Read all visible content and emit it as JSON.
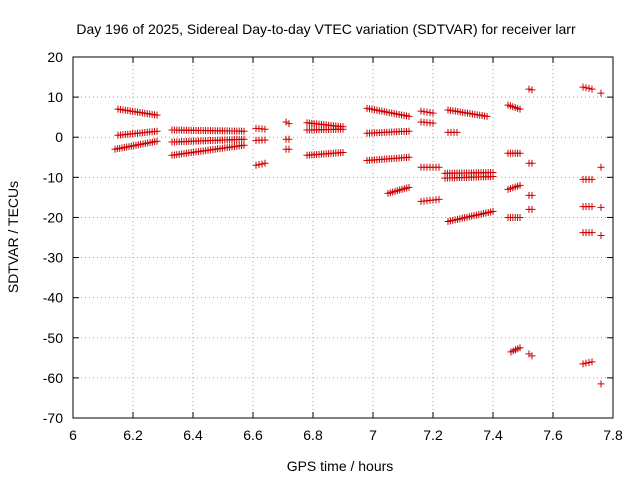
{
  "chart_data": {
    "type": "scatter",
    "title": "Day 196 of 2025, Sidereal Day-to-day VTEC variation (SDTVAR) for receiver larr",
    "xlabel": "GPS time / hours",
    "ylabel": "SDTVAR / TECUs",
    "xlim": [
      6,
      7.8
    ],
    "ylim": [
      -70,
      20
    ],
    "xticks": [
      6,
      6.2,
      6.4,
      6.6,
      6.8,
      7,
      7.2,
      7.4,
      7.6,
      7.8
    ],
    "yticks": [
      20,
      10,
      0,
      -10,
      -20,
      -30,
      -40,
      -50,
      -60,
      -70
    ],
    "xtick_labels": [
      "6",
      "6.2",
      "6.4",
      "6.6",
      "6.8",
      "7",
      "7.2",
      "7.4",
      "7.6",
      "7.8"
    ],
    "ytick_labels": [
      "20",
      "10",
      "0",
      "-10",
      "-20",
      "-30",
      "-40",
      "-50",
      "-60",
      "-70"
    ],
    "grid": true,
    "marker": "+",
    "color": "#cc0000",
    "segments": [
      {
        "x0": 6.15,
        "x1": 6.28,
        "y0": 7.0,
        "y1": 5.5,
        "step": 0.008
      },
      {
        "x0": 6.15,
        "x1": 6.28,
        "y0": 0.5,
        "y1": 1.5,
        "step": 0.008
      },
      {
        "x0": 6.14,
        "x1": 6.28,
        "y0": -3.0,
        "y1": -1.0,
        "step": 0.008
      },
      {
        "x0": 6.33,
        "x1": 6.57,
        "y0": 1.8,
        "y1": 1.5,
        "step": 0.008
      },
      {
        "x0": 6.33,
        "x1": 6.57,
        "y0": -1.2,
        "y1": -0.5,
        "step": 0.008
      },
      {
        "x0": 6.33,
        "x1": 6.57,
        "y0": -4.5,
        "y1": -2.0,
        "step": 0.008
      },
      {
        "x0": 6.61,
        "x1": 6.64,
        "y0": 2.2,
        "y1": 2.0,
        "step": 0.01
      },
      {
        "x0": 6.61,
        "x1": 6.64,
        "y0": -0.8,
        "y1": -0.7,
        "step": 0.01
      },
      {
        "x0": 6.61,
        "x1": 6.64,
        "y0": -7.0,
        "y1": -6.5,
        "step": 0.01
      },
      {
        "x0": 6.71,
        "x1": 6.72,
        "y0": 3.8,
        "y1": 3.4,
        "step": 0.01
      },
      {
        "x0": 6.71,
        "x1": 6.72,
        "y0": -0.5,
        "y1": -0.5,
        "step": 0.01
      },
      {
        "x0": 6.71,
        "x1": 6.72,
        "y0": -3.0,
        "y1": -3.0,
        "step": 0.01
      },
      {
        "x0": 6.78,
        "x1": 6.9,
        "y0": 3.6,
        "y1": 2.6,
        "step": 0.008
      },
      {
        "x0": 6.78,
        "x1": 6.9,
        "y0": 1.8,
        "y1": 2.0,
        "step": 0.008
      },
      {
        "x0": 6.78,
        "x1": 6.9,
        "y0": -4.5,
        "y1": -3.8,
        "step": 0.008
      },
      {
        "x0": 6.98,
        "x1": 7.12,
        "y0": 7.2,
        "y1": 5.2,
        "step": 0.008
      },
      {
        "x0": 6.98,
        "x1": 7.12,
        "y0": 1.0,
        "y1": 1.5,
        "step": 0.008
      },
      {
        "x0": 6.98,
        "x1": 7.12,
        "y0": -5.8,
        "y1": -5.0,
        "step": 0.008
      },
      {
        "x0": 7.05,
        "x1": 7.12,
        "y0": -14.0,
        "y1": -12.5,
        "step": 0.008
      },
      {
        "x0": 7.16,
        "x1": 7.2,
        "y0": 6.5,
        "y1": 6.0,
        "step": 0.01
      },
      {
        "x0": 7.16,
        "x1": 7.2,
        "y0": 3.8,
        "y1": 3.5,
        "step": 0.01
      },
      {
        "x0": 7.16,
        "x1": 7.22,
        "y0": -7.5,
        "y1": -7.5,
        "step": 0.01
      },
      {
        "x0": 7.16,
        "x1": 7.22,
        "y0": -16.0,
        "y1": -15.5,
        "step": 0.01
      },
      {
        "x0": 7.25,
        "x1": 7.38,
        "y0": 6.8,
        "y1": 5.2,
        "step": 0.008
      },
      {
        "x0": 7.25,
        "x1": 7.28,
        "y0": 1.2,
        "y1": 1.2,
        "step": 0.01
      },
      {
        "x0": 7.24,
        "x1": 7.4,
        "y0": -9.0,
        "y1": -8.8,
        "step": 0.008
      },
      {
        "x0": 7.24,
        "x1": 7.4,
        "y0": -10.2,
        "y1": -9.8,
        "step": 0.008
      },
      {
        "x0": 7.25,
        "x1": 7.4,
        "y0": -21.0,
        "y1": -18.5,
        "step": 0.008
      },
      {
        "x0": 7.45,
        "x1": 7.49,
        "y0": 8.0,
        "y1": 7.0,
        "step": 0.008
      },
      {
        "x0": 7.45,
        "x1": 7.49,
        "y0": -4.0,
        "y1": -4.0,
        "step": 0.008
      },
      {
        "x0": 7.45,
        "x1": 7.49,
        "y0": -13.0,
        "y1": -12.0,
        "step": 0.008
      },
      {
        "x0": 7.45,
        "x1": 7.49,
        "y0": -20.0,
        "y1": -20.0,
        "step": 0.008
      },
      {
        "x0": 7.46,
        "x1": 7.49,
        "y0": -53.5,
        "y1": -52.5,
        "step": 0.008
      },
      {
        "x0": 7.52,
        "x1": 7.53,
        "y0": 12.0,
        "y1": 11.8,
        "step": 0.01
      },
      {
        "x0": 7.52,
        "x1": 7.53,
        "y0": -6.5,
        "y1": -6.5,
        "step": 0.01
      },
      {
        "x0": 7.52,
        "x1": 7.53,
        "y0": -14.5,
        "y1": -14.5,
        "step": 0.01
      },
      {
        "x0": 7.52,
        "x1": 7.53,
        "y0": -18.0,
        "y1": -18.0,
        "step": 0.01
      },
      {
        "x0": 7.52,
        "x1": 7.53,
        "y0": -54.0,
        "y1": -54.5,
        "step": 0.01
      },
      {
        "x0": 7.7,
        "x1": 7.73,
        "y0": 12.5,
        "y1": 12.0,
        "step": 0.01
      },
      {
        "x0": 7.7,
        "x1": 7.73,
        "y0": -10.5,
        "y1": -10.5,
        "step": 0.01
      },
      {
        "x0": 7.7,
        "x1": 7.73,
        "y0": -17.3,
        "y1": -17.3,
        "step": 0.01
      },
      {
        "x0": 7.7,
        "x1": 7.73,
        "y0": -23.8,
        "y1": -23.8,
        "step": 0.01
      },
      {
        "x0": 7.7,
        "x1": 7.73,
        "y0": -56.5,
        "y1": -56.0,
        "step": 0.01
      },
      {
        "x0": 7.76,
        "x1": 7.76,
        "y0": 11.0,
        "y1": 11.0,
        "step": 0.01
      },
      {
        "x0": 7.76,
        "x1": 7.76,
        "y0": -7.5,
        "y1": -7.5,
        "step": 0.01
      },
      {
        "x0": 7.76,
        "x1": 7.76,
        "y0": -17.5,
        "y1": -17.5,
        "step": 0.01
      },
      {
        "x0": 7.76,
        "x1": 7.76,
        "y0": -24.5,
        "y1": -24.5,
        "step": 0.01
      },
      {
        "x0": 7.76,
        "x1": 7.76,
        "y0": -61.5,
        "y1": -61.5,
        "step": 0.01
      }
    ]
  }
}
